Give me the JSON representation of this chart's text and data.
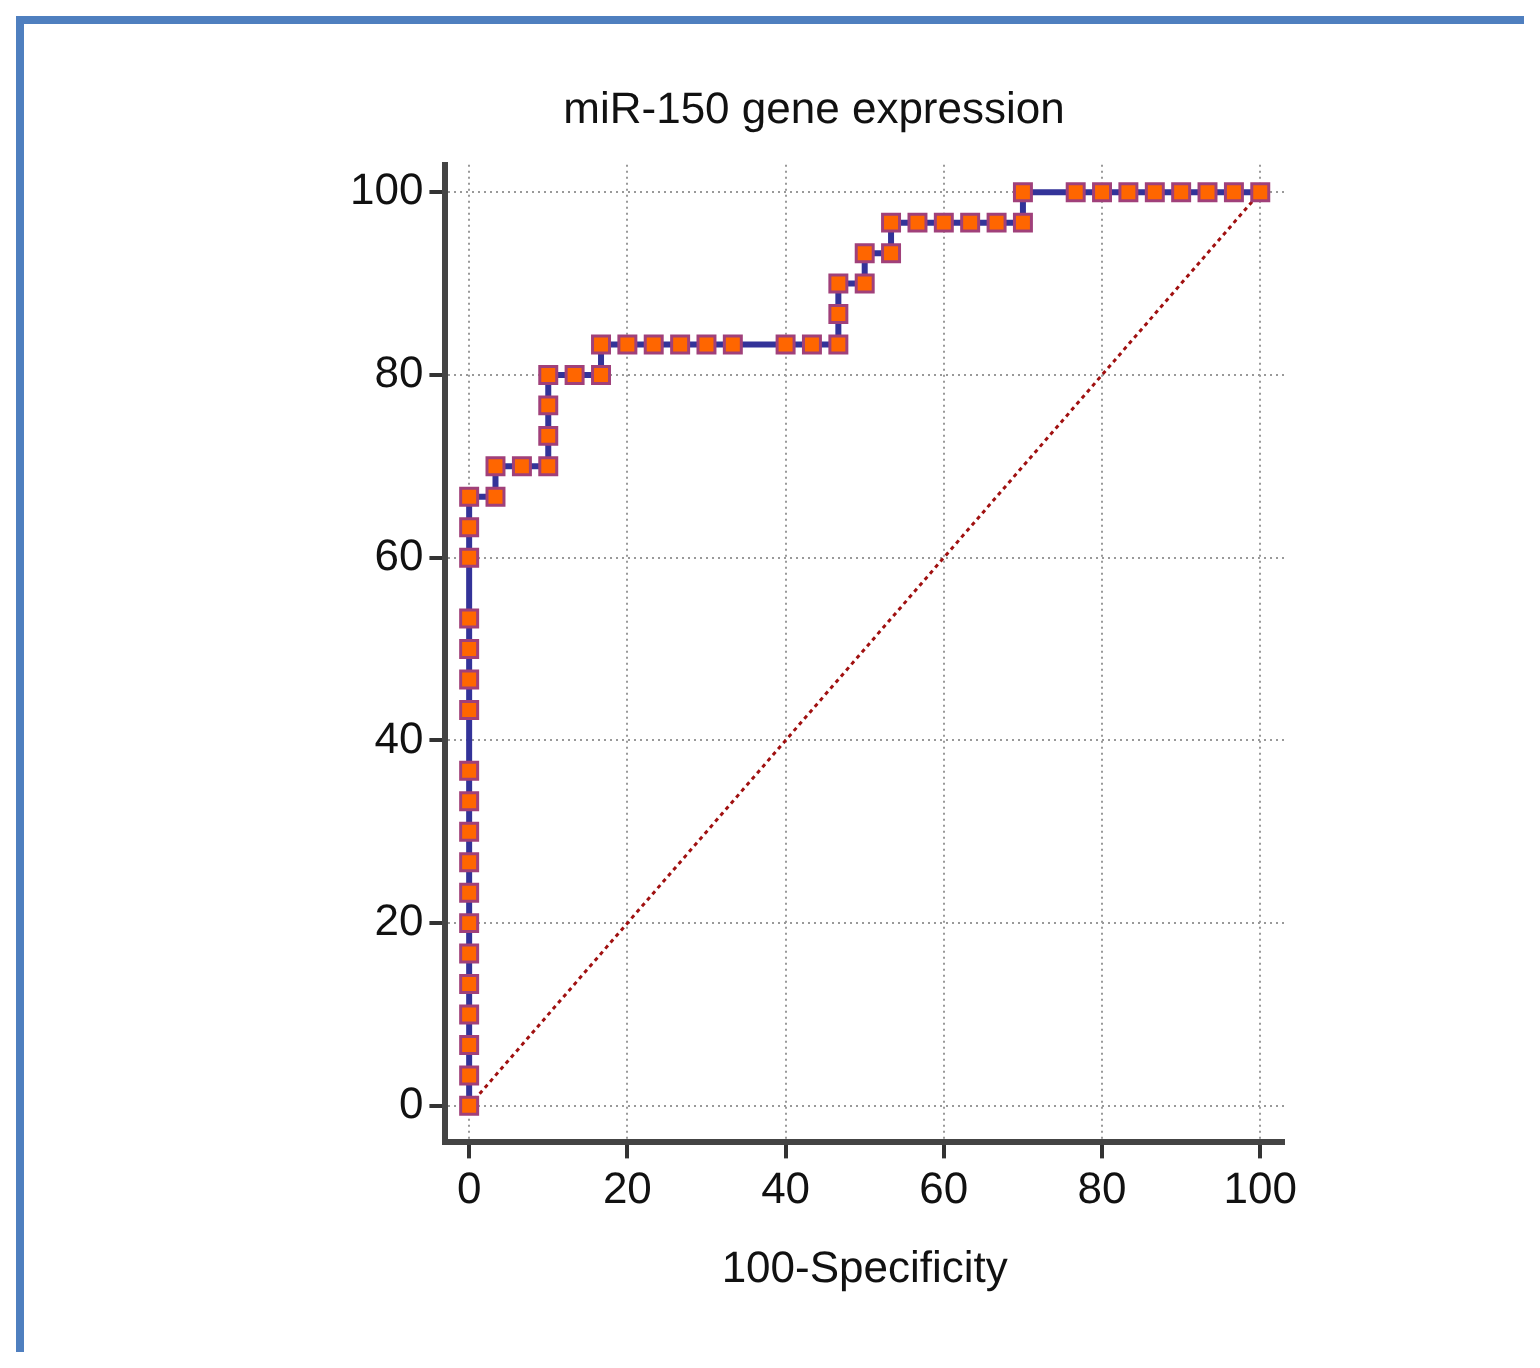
{
  "chart_data": {
    "type": "line",
    "title": "miR-150 gene expression",
    "xlabel": "100-Specificity",
    "series": [
      {
        "color": "#ff6600",
        "marker": "square",
        "line_style": "solid",
        "x": [
          0,
          0,
          0,
          0,
          0,
          0,
          0,
          0,
          0,
          0,
          0,
          0,
          0,
          0,
          0,
          0,
          0,
          0,
          0,
          3.33,
          3.33,
          6.67,
          10,
          10,
          10,
          10,
          13.33,
          16.67,
          16.67,
          20,
          23.33,
          26.67,
          30,
          33.33,
          40,
          43.33,
          46.67,
          46.67,
          46.67,
          50,
          50,
          53.33,
          53.33,
          56.67,
          60,
          63.33,
          66.67,
          70,
          70,
          76.67,
          80,
          83.33,
          86.67,
          90,
          93.33,
          96.67,
          100
        ],
        "values": [
          0,
          3.33,
          6.67,
          10,
          13.33,
          16.67,
          20,
          23.33,
          26.67,
          30,
          33.33,
          36.67,
          43.33,
          46.67,
          50,
          53.33,
          60,
          63.33,
          66.67,
          66.67,
          70,
          70,
          70,
          73.33,
          76.67,
          80,
          80,
          80,
          83.33,
          83.33,
          83.33,
          83.33,
          83.33,
          83.33,
          83.33,
          83.33,
          83.33,
          86.67,
          90,
          90,
          93.33,
          93.33,
          96.67,
          96.67,
          96.67,
          96.67,
          96.67,
          96.67,
          100,
          100,
          100,
          100,
          100,
          100,
          100,
          100,
          100
        ]
      },
      {
        "color": "#a01010",
        "marker": "none",
        "line_style": "dotted",
        "x": [
          0,
          100
        ],
        "values": [
          0,
          100
        ]
      }
    ],
    "xlim": [
      -3,
      103
    ],
    "ylim": [
      -4,
      103
    ],
    "xticks": [
      0,
      20,
      40,
      60,
      80,
      100
    ],
    "yticks": [
      0,
      20,
      40,
      60,
      80,
      100
    ],
    "grid": true,
    "legend": false
  }
}
